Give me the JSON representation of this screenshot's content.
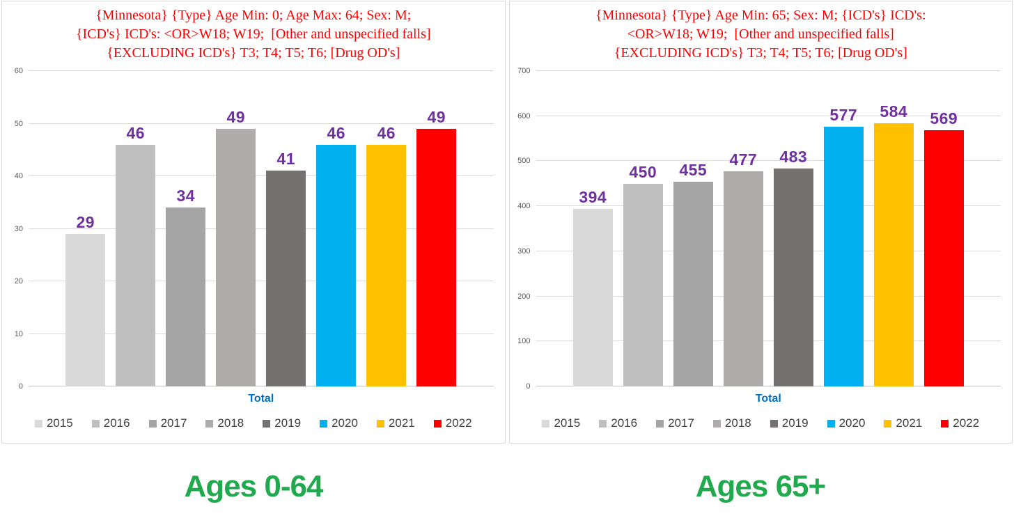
{
  "theme": {
    "page_background": "#FFFFFF",
    "panel_border_color": "#D9D9D9",
    "grid_color": "#D9D9D9",
    "axis_line_color": "#BFBFBF",
    "tick_color": "#595959",
    "legend_text_color": "#404040",
    "x_label_color": "#0070C0",
    "caption_color": "#21A94D",
    "title_color": "#FF0000",
    "data_label_color": "#7030A0"
  },
  "chart_data": [
    {
      "type": "bar",
      "title": "{Minnesota} {Type} Age Min: 0; Age Max: 64; Sex: M; {ICD's} ICD's: <OR>W18; W19; [Other and unspecified falls] {EXCLUDING ICD's} T3; T4; T5; T6; [Drug OD's]",
      "title_lines": [
        "{Minnesota} {Type} Age Min: 0; Age Max: 64; Sex: M;",
        "{ICD's} ICD's: <OR>W18; W19;  [Other and unspecified falls]",
        "{EXCLUDING ICD's} T3; T4; T5; T6; [Drug OD's]"
      ],
      "title_color": "#FF0000",
      "categories": [
        "2015",
        "2016",
        "2017",
        "2018",
        "2019",
        "2020",
        "2021",
        "2022"
      ],
      "values": [
        29,
        46,
        34,
        49,
        41,
        46,
        46,
        49
      ],
      "bar_colors": [
        "#D9D9D9",
        "#BFBFBF",
        "#A5A5A5",
        "#AFABAB",
        "#767171",
        "#00B0F0",
        "#FFC000",
        "#FF0000"
      ],
      "data_label_color": "#7030A0",
      "xlabel": "Total",
      "ylabel": "",
      "ylim": [
        0,
        60
      ],
      "yticks": [
        0,
        10,
        20,
        30,
        40,
        50,
        60
      ],
      "grid": true,
      "legend_position": "bottom",
      "caption": "Ages 0-64"
    },
    {
      "type": "bar",
      "title": "{Minnesota} {Type} Age Min: 65; Sex: M; {ICD's} ICD's: <OR>W18; W19; [Other and unspecified falls] {EXCLUDING ICD's} T3; T4; T5; T6; [Drug OD's]",
      "title_lines": [
        "{Minnesota} {Type} Age Min: 65; Sex: M; {ICD's} ICD's:",
        "<OR>W18; W19;  [Other and unspecified falls]",
        "{EXCLUDING ICD's} T3; T4; T5; T6; [Drug OD's]"
      ],
      "title_color": "#FF0000",
      "categories": [
        "2015",
        "2016",
        "2017",
        "2018",
        "2019",
        "2020",
        "2021",
        "2022"
      ],
      "values": [
        394,
        450,
        455,
        477,
        483,
        577,
        584,
        569
      ],
      "bar_colors": [
        "#D9D9D9",
        "#BFBFBF",
        "#A5A5A5",
        "#AFABAB",
        "#767171",
        "#00B0F0",
        "#FFC000",
        "#FF0000"
      ],
      "data_label_color": "#7030A0",
      "xlabel": "Total",
      "ylabel": "",
      "ylim": [
        0,
        700
      ],
      "yticks": [
        0,
        100,
        200,
        300,
        400,
        500,
        600,
        700
      ],
      "grid": true,
      "legend_position": "bottom",
      "caption": "Ages 65+"
    }
  ]
}
